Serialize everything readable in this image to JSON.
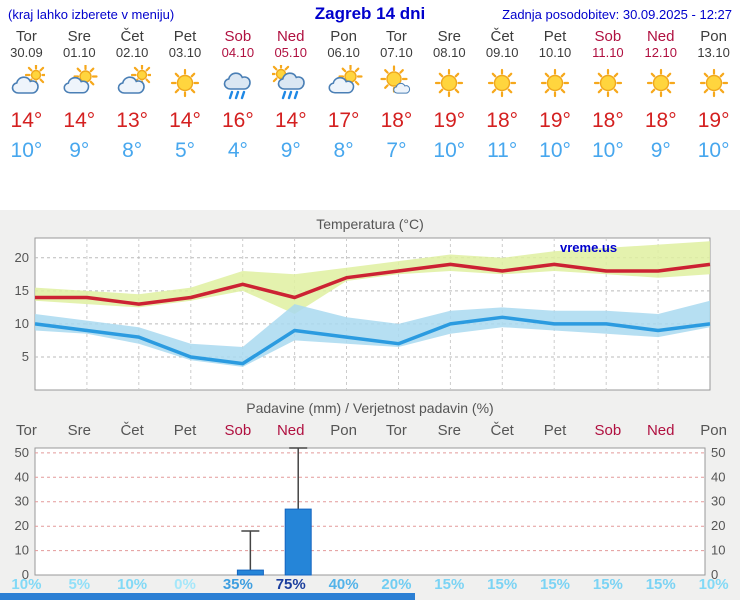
{
  "header": {
    "left_note": "(kraj lahko izberete v meniju)",
    "title": "Zagreb 14 dni",
    "updated": "Zadnja posodobitev: 30.09.2025 - 12:27"
  },
  "colors": {
    "header_blue": "#0000cc",
    "weekday_text": "#3c3c3c",
    "weekend_text": "#b01040",
    "temp_high": "#d42020",
    "temp_low": "#47a7ee",
    "panel_bg": "#f0f0ef",
    "footer_bar": "#2b7fd4"
  },
  "days": [
    {
      "name": "Tor",
      "date": "30.09",
      "icon": "cloudy",
      "high": "14°",
      "low": "10°",
      "weekend": false
    },
    {
      "name": "Sre",
      "date": "01.10",
      "icon": "partly",
      "high": "14°",
      "low": "9°",
      "weekend": false
    },
    {
      "name": "Čet",
      "date": "02.10",
      "icon": "cloudy",
      "high": "13°",
      "low": "8°",
      "weekend": false
    },
    {
      "name": "Pet",
      "date": "03.10",
      "icon": "sunny",
      "high": "14°",
      "low": "5°",
      "weekend": false
    },
    {
      "name": "Sob",
      "date": "04.10",
      "icon": "rain",
      "high": "16°",
      "low": "4°",
      "weekend": true
    },
    {
      "name": "Ned",
      "date": "05.10",
      "icon": "rain-sun",
      "high": "14°",
      "low": "9°",
      "weekend": true
    },
    {
      "name": "Pon",
      "date": "06.10",
      "icon": "partly",
      "high": "17°",
      "low": "8°",
      "weekend": false
    },
    {
      "name": "Tor",
      "date": "07.10",
      "icon": "mostly-sunny",
      "high": "18°",
      "low": "7°",
      "weekend": false
    },
    {
      "name": "Sre",
      "date": "08.10",
      "icon": "sunny",
      "high": "19°",
      "low": "10°",
      "weekend": false
    },
    {
      "name": "Čet",
      "date": "09.10",
      "icon": "sunny",
      "high": "18°",
      "low": "11°",
      "weekend": false
    },
    {
      "name": "Pet",
      "date": "10.10",
      "icon": "sunny",
      "high": "19°",
      "low": "10°",
      "weekend": false
    },
    {
      "name": "Sob",
      "date": "11.10",
      "icon": "sunny",
      "high": "18°",
      "low": "10°",
      "weekend": true
    },
    {
      "name": "Ned",
      "date": "12.10",
      "icon": "sunny",
      "high": "18°",
      "low": "9°",
      "weekend": true
    },
    {
      "name": "Pon",
      "date": "13.10",
      "icon": "sunny",
      "high": "19°",
      "low": "10°",
      "weekend": false
    }
  ],
  "chart_data": [
    {
      "type": "line",
      "title": "Temperatura (°C)",
      "watermark": "vreme.us",
      "x_labels": [
        "Tor",
        "Sre",
        "Čet",
        "Pet",
        "Sob",
        "Ned",
        "Pon",
        "Tor",
        "Sre",
        "Čet",
        "Pet",
        "Sob",
        "Ned",
        "Pon"
      ],
      "ylim": [
        0,
        23
      ],
      "yticks": [
        5,
        10,
        15,
        20
      ],
      "grid": true,
      "legend": "none",
      "series": [
        {
          "name": "max temperatura",
          "color": "#cc2233",
          "values": [
            14,
            14,
            13,
            14,
            16,
            14,
            17,
            18,
            19,
            18,
            19,
            18,
            18,
            19
          ]
        },
        {
          "name": "min temperatura",
          "color": "#2b9be0",
          "values": [
            10,
            9,
            8,
            5,
            4,
            9,
            8,
            7,
            10,
            11,
            10,
            10,
            9,
            10
          ]
        }
      ],
      "bands": [
        {
          "name": "max razpon",
          "color": "#dff0a0",
          "upper": [
            15.5,
            15,
            14.5,
            15.5,
            18,
            17.5,
            18.5,
            19.5,
            20.5,
            20,
            21,
            21.5,
            22,
            22.5
          ],
          "lower": [
            13.5,
            13,
            12.5,
            13.5,
            15,
            11.5,
            16.5,
            17.5,
            18,
            17.5,
            18,
            17.5,
            17,
            17.5
          ]
        },
        {
          "name": "min razpon",
          "color": "#a9d9f0",
          "upper": [
            11.5,
            10.5,
            9.5,
            7,
            6.5,
            13,
            11,
            10,
            12,
            12.5,
            12,
            12,
            11.5,
            13.5
          ],
          "lower": [
            9,
            8.5,
            7,
            4.5,
            3.5,
            7.5,
            7,
            6.5,
            8.5,
            9.5,
            9,
            8.5,
            8,
            9.5
          ]
        }
      ]
    },
    {
      "type": "bar",
      "title": "Padavine (mm) / Verjetnost padavin (%)",
      "categories": [
        "Tor",
        "Sre",
        "Čet",
        "Pet",
        "Sob",
        "Ned",
        "Pon",
        "Tor",
        "Sre",
        "Čet",
        "Pet",
        "Sob",
        "Ned",
        "Pon"
      ],
      "weekend_indices": [
        4,
        5,
        11,
        12
      ],
      "values": [
        0,
        0,
        0,
        0,
        2,
        27,
        0,
        0,
        0,
        0,
        0,
        0,
        0,
        0
      ],
      "whisker_max": [
        0,
        0,
        0,
        0,
        18,
        52,
        0,
        0,
        0,
        0,
        0,
        0,
        0,
        0
      ],
      "ylim": [
        0,
        52
      ],
      "yticks": [
        0,
        10,
        20,
        30,
        40,
        50
      ],
      "bar_color": "#2585d8",
      "bar_border": "#1565c0",
      "probabilities": [
        {
          "label": "10%",
          "color": "#82d9f6"
        },
        {
          "label": "5%",
          "color": "#90dff8"
        },
        {
          "label": "10%",
          "color": "#82d9f6"
        },
        {
          "label": "0%",
          "color": "#a5e7fa"
        },
        {
          "label": "35%",
          "color": "#3f9fe0"
        },
        {
          "label": "75%",
          "color": "#1c3f9e"
        },
        {
          "label": "40%",
          "color": "#53b3e9"
        },
        {
          "label": "20%",
          "color": "#70cdf2"
        },
        {
          "label": "15%",
          "color": "#7bd3f4"
        },
        {
          "label": "15%",
          "color": "#7bd3f4"
        },
        {
          "label": "15%",
          "color": "#7bd3f4"
        },
        {
          "label": "15%",
          "color": "#7bd3f4"
        },
        {
          "label": "15%",
          "color": "#7bd3f4"
        },
        {
          "label": "10%",
          "color": "#82d9f6"
        }
      ]
    }
  ]
}
